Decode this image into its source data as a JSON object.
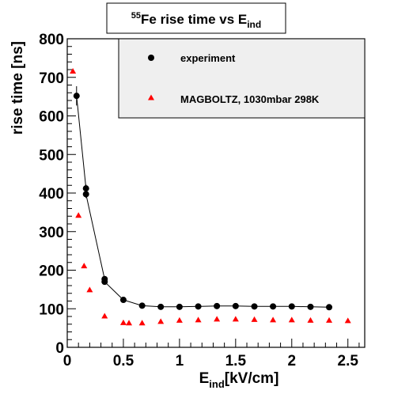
{
  "chart_data": {
    "type": "scatter",
    "title": {
      "prefix_superscript": "55",
      "main": "Fe rise time vs E",
      "subscript": "ind"
    },
    "xlabel": {
      "main": "E",
      "subscript": "ind",
      "suffix": "[kV/cm]"
    },
    "ylabel": "rise time [ns]",
    "xlim": [
      0,
      2.65
    ],
    "ylim": [
      0,
      800
    ],
    "x_ticks": [
      0,
      0.5,
      1,
      1.5,
      2,
      2.5
    ],
    "x_tick_labels": [
      "0",
      "0.5",
      "1",
      "1.5",
      "2",
      "2.5"
    ],
    "y_ticks": [
      0,
      100,
      200,
      300,
      400,
      500,
      600,
      700,
      800
    ],
    "y_tick_labels": [
      "0",
      "100",
      "200",
      "300",
      "400",
      "500",
      "600",
      "700",
      "800"
    ],
    "legend_position": "top-right",
    "series": [
      {
        "name": "experiment",
        "marker": "circle",
        "color": "#000000",
        "connected": true,
        "points": [
          {
            "x": 0.083,
            "y": 652,
            "err": 25
          },
          {
            "x": 0.167,
            "y": 412,
            "err": 10
          },
          {
            "x": 0.167,
            "y": 397,
            "err": 10
          },
          {
            "x": 0.333,
            "y": 177,
            "err": 5
          },
          {
            "x": 0.333,
            "y": 170,
            "err": 5
          },
          {
            "x": 0.5,
            "y": 123,
            "err": 3
          },
          {
            "x": 0.667,
            "y": 108,
            "err": 3
          },
          {
            "x": 0.833,
            "y": 105,
            "err": 3
          },
          {
            "x": 1.0,
            "y": 105,
            "err": 3
          },
          {
            "x": 1.167,
            "y": 106,
            "err": 3
          },
          {
            "x": 1.333,
            "y": 107,
            "err": 3
          },
          {
            "x": 1.5,
            "y": 107,
            "err": 3
          },
          {
            "x": 1.667,
            "y": 106,
            "err": 3
          },
          {
            "x": 1.833,
            "y": 106,
            "err": 3
          },
          {
            "x": 2.0,
            "y": 106,
            "err": 3
          },
          {
            "x": 2.167,
            "y": 105,
            "err": 3
          },
          {
            "x": 2.333,
            "y": 104,
            "err": 3
          }
        ]
      },
      {
        "name": "MAGBOLTZ, 1030mbar 298K",
        "marker": "triangle",
        "color": "#ff0000",
        "connected": false,
        "points": [
          {
            "x": 0.05,
            "y": 717
          },
          {
            "x": 0.1,
            "y": 343
          },
          {
            "x": 0.15,
            "y": 212
          },
          {
            "x": 0.2,
            "y": 150
          },
          {
            "x": 0.333,
            "y": 82
          },
          {
            "x": 0.5,
            "y": 65
          },
          {
            "x": 0.55,
            "y": 64
          },
          {
            "x": 0.667,
            "y": 64
          },
          {
            "x": 0.833,
            "y": 68
          },
          {
            "x": 1.0,
            "y": 71
          },
          {
            "x": 1.167,
            "y": 72
          },
          {
            "x": 1.333,
            "y": 74
          },
          {
            "x": 1.5,
            "y": 74
          },
          {
            "x": 1.667,
            "y": 73
          },
          {
            "x": 1.833,
            "y": 72
          },
          {
            "x": 2.0,
            "y": 72
          },
          {
            "x": 2.167,
            "y": 71
          },
          {
            "x": 2.333,
            "y": 71
          },
          {
            "x": 2.5,
            "y": 70
          }
        ]
      }
    ]
  }
}
